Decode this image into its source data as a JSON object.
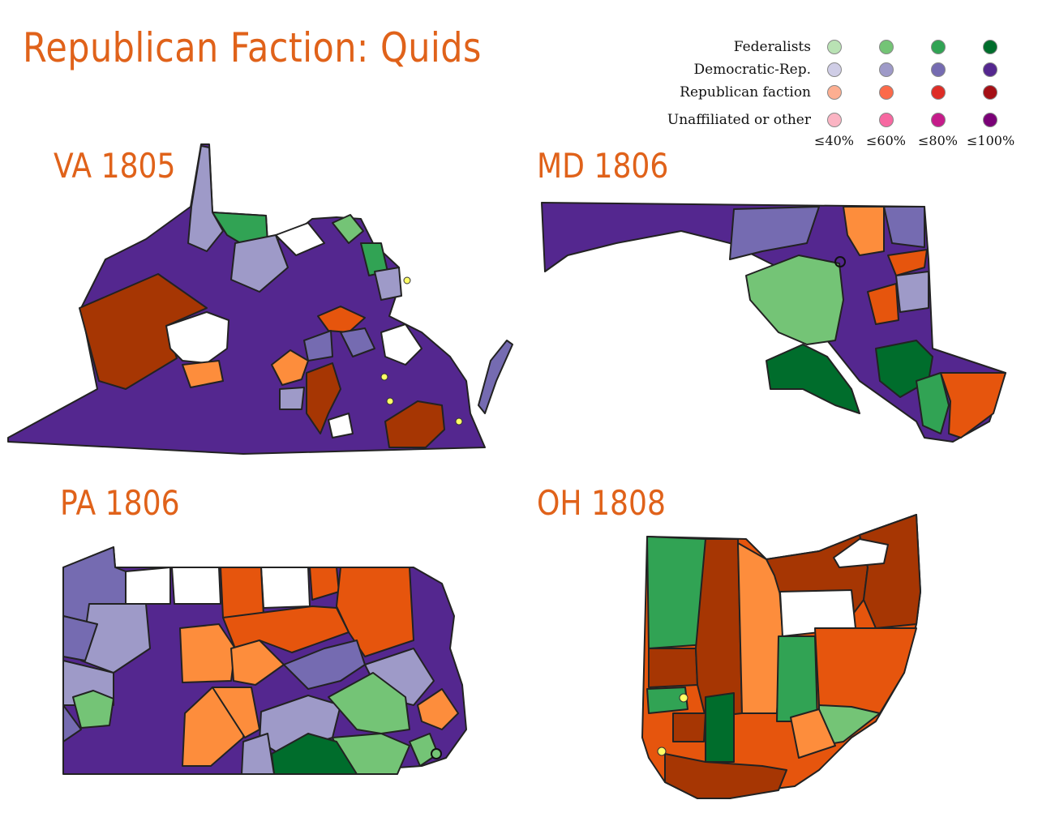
{
  "title": "Republican Faction: Quids",
  "maps": {
    "va": "VA 1805",
    "md": "MD 1806",
    "pa": "PA 1806",
    "oh": "OH 1808"
  },
  "legend": {
    "rows": [
      {
        "label": "Federalists",
        "colors": [
          "#b9e2b4",
          "#74c476",
          "#31a354",
          "#006d2c"
        ]
      },
      {
        "label": "Democratic-Rep.",
        "colors": [
          "#cfcde6",
          "#9e9ac8",
          "#756bb1",
          "#54278f"
        ]
      },
      {
        "label": "Republican faction",
        "colors": [
          "#fcae91",
          "#fb6a4a",
          "#de2d26",
          "#a50f15"
        ]
      },
      {
        "label": "Unaffiliated or other",
        "colors": [
          "#fbb4c3",
          "#f768a1",
          "#c51b8a",
          "#7a0177"
        ]
      }
    ],
    "percent_labels": [
      "≤40%",
      "≤60%",
      "≤80%",
      "≤100%"
    ]
  },
  "colors": {
    "dem_dark": "#54278f",
    "dem_mid": "#756bb1",
    "dem_light": "#9e9ac8",
    "fed_light": "#74c476",
    "fed_mid": "#31a354",
    "fed_dark": "#006d2c",
    "rep_light": "#fd8d3c",
    "rep_mid": "#e6550d",
    "rep_dark": "#a63603",
    "blank": "#ffffff"
  }
}
